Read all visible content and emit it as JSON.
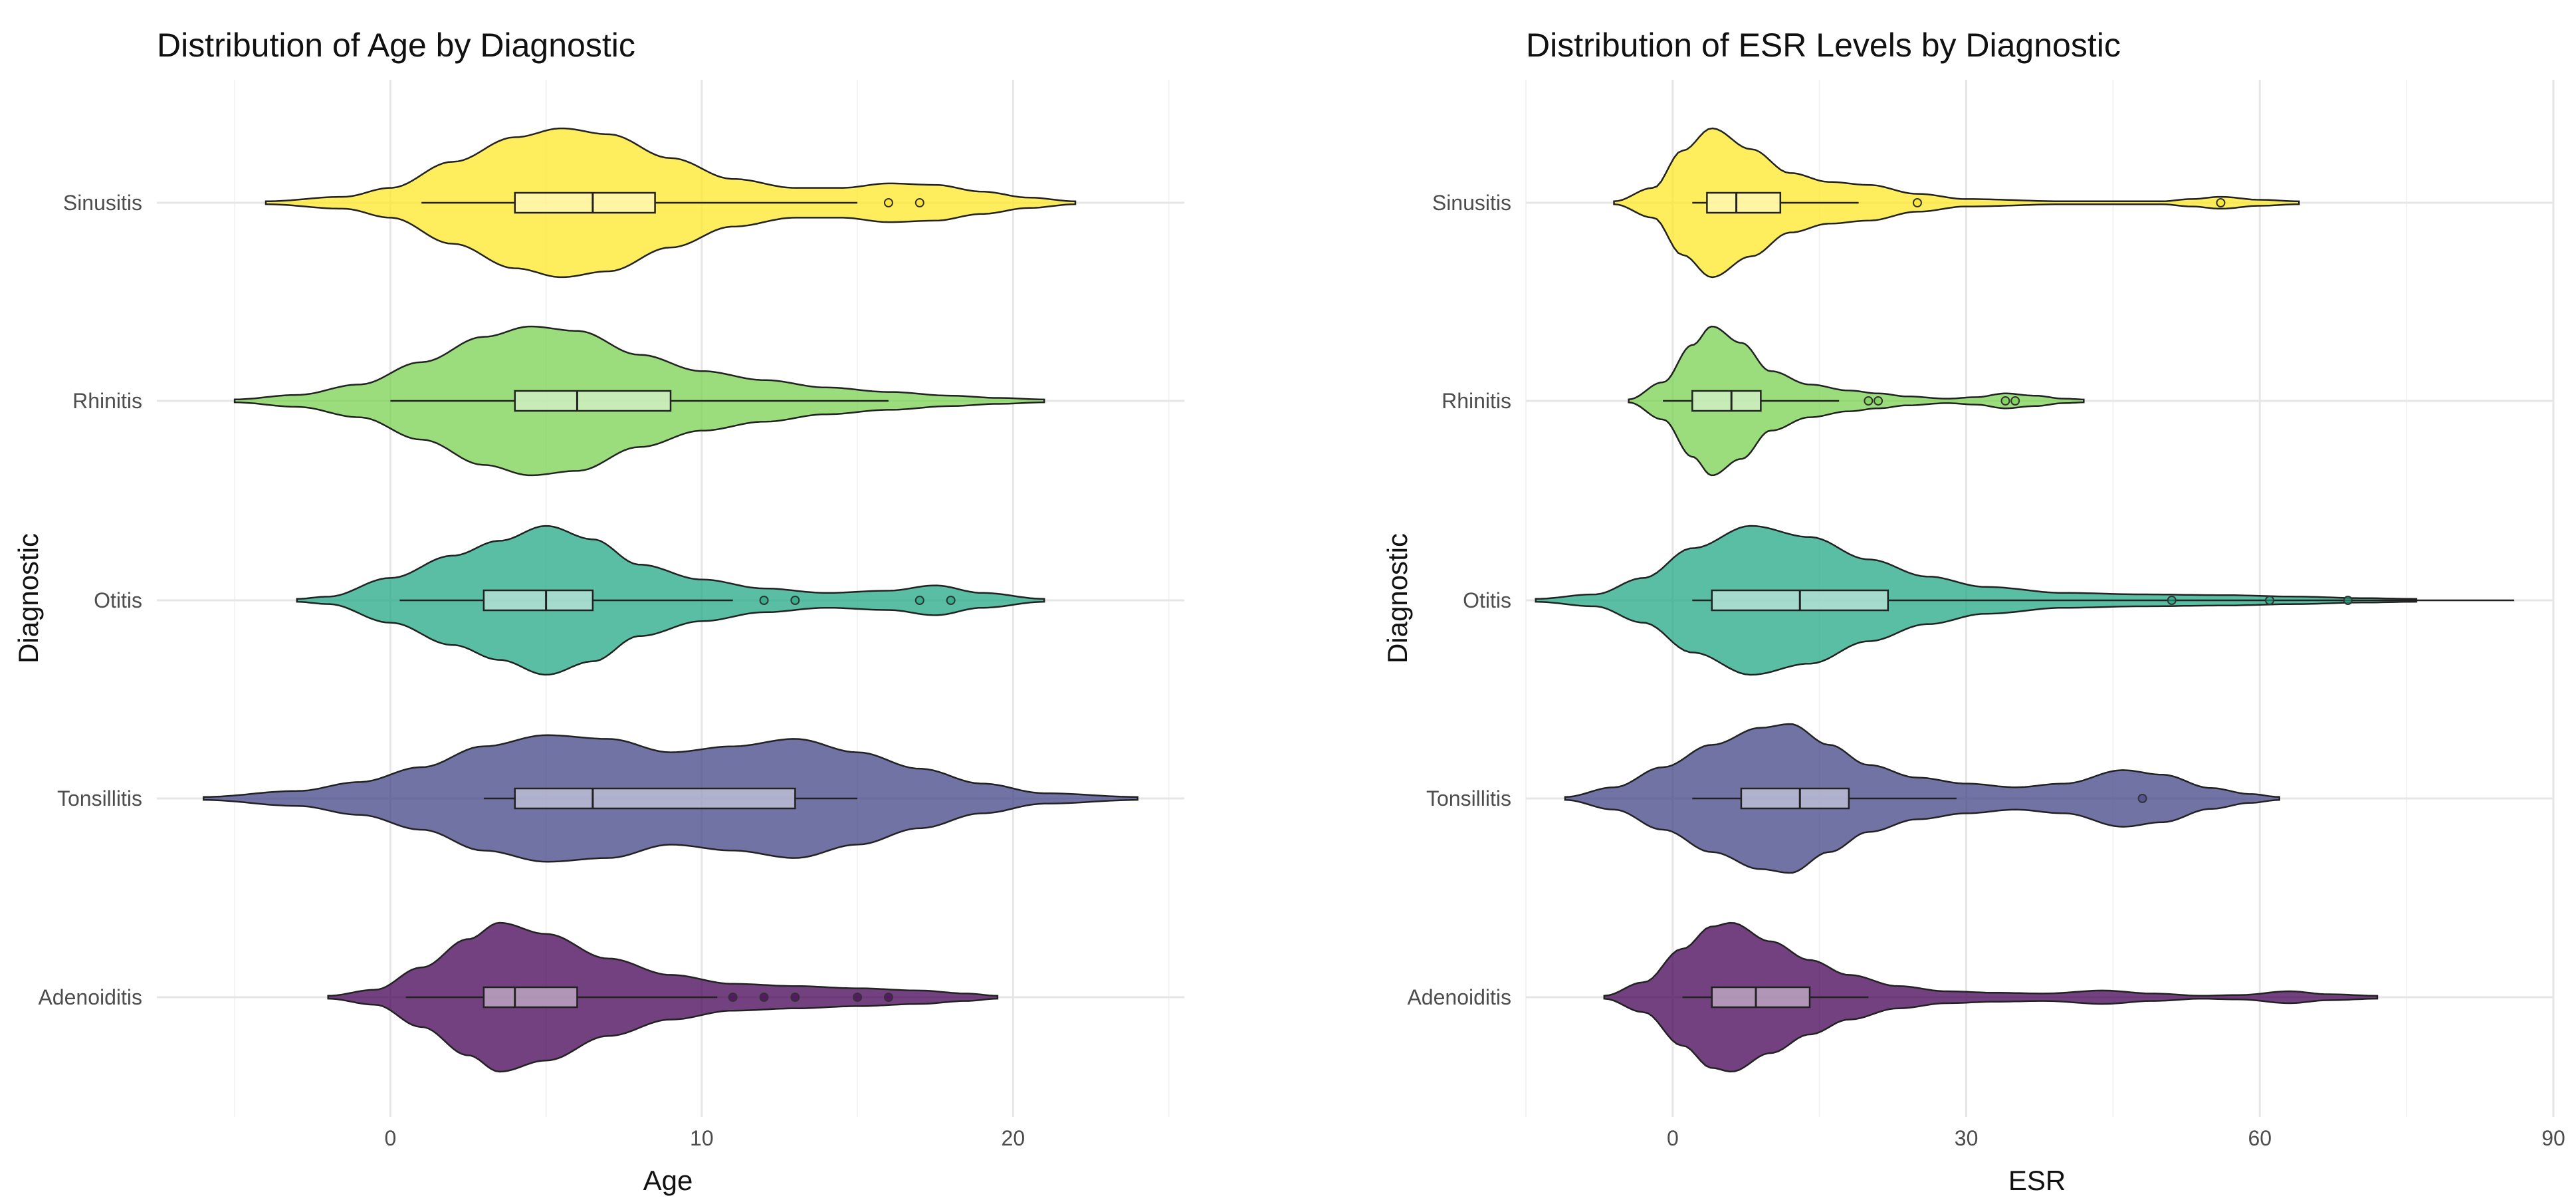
{
  "chart_data": [
    {
      "type": "violin",
      "title": "Distribution of Age by Diagnostic",
      "xlabel": "Age",
      "ylabel": "Diagnostic",
      "xlim": [
        -7.5,
        25.5
      ],
      "x_ticks": [
        0,
        10,
        20
      ],
      "x_minor": [
        -5,
        5,
        15,
        25
      ],
      "grid": true,
      "legend": "none",
      "categories": [
        "Sinusitis",
        "Rhinitis",
        "Otitis",
        "Tonsillitis",
        "Adenoiditis"
      ],
      "series": [
        {
          "name": "Sinusitis",
          "color": "#FDE725",
          "violin_min": -4,
          "violin_max": 22,
          "density": [
            [
              -4,
              0.02
            ],
            [
              -1.5,
              0.08
            ],
            [
              0,
              0.2
            ],
            [
              2,
              0.55
            ],
            [
              4,
              0.88
            ],
            [
              5.5,
              1.0
            ],
            [
              7,
              0.92
            ],
            [
              9,
              0.6
            ],
            [
              11,
              0.32
            ],
            [
              13,
              0.2
            ],
            [
              14.5,
              0.2
            ],
            [
              16,
              0.26
            ],
            [
              17.5,
              0.24
            ],
            [
              19,
              0.15
            ],
            [
              20.5,
              0.07
            ],
            [
              22,
              0.02
            ]
          ],
          "box": {
            "whisker_low": 1,
            "q1": 4,
            "median": 6.5,
            "q3": 8.5,
            "whisker_high": 15
          },
          "outliers": [
            16,
            17
          ]
        },
        {
          "name": "Rhinitis",
          "color": "#7AD151",
          "violin_min": -5,
          "violin_max": 21,
          "density": [
            [
              -5,
              0.02
            ],
            [
              -3,
              0.08
            ],
            [
              -1,
              0.22
            ],
            [
              1,
              0.52
            ],
            [
              3,
              0.86
            ],
            [
              4.5,
              1.0
            ],
            [
              6,
              0.94
            ],
            [
              8,
              0.62
            ],
            [
              10,
              0.4
            ],
            [
              12,
              0.28
            ],
            [
              14,
              0.18
            ],
            [
              16,
              0.12
            ],
            [
              18,
              0.07
            ],
            [
              19.5,
              0.04
            ],
            [
              21,
              0.02
            ]
          ],
          "box": {
            "whisker_low": 0,
            "q1": 4,
            "median": 6,
            "q3": 9,
            "whisker_high": 16
          },
          "outliers": []
        },
        {
          "name": "Otitis",
          "color": "#22A884",
          "violin_min": -3,
          "violin_max": 21,
          "density": [
            [
              -3,
              0.02
            ],
            [
              -2,
              0.05
            ],
            [
              0,
              0.3
            ],
            [
              2,
              0.6
            ],
            [
              3.5,
              0.8
            ],
            [
              5,
              1.0
            ],
            [
              6.5,
              0.82
            ],
            [
              8,
              0.48
            ],
            [
              10,
              0.28
            ],
            [
              12,
              0.16
            ],
            [
              14,
              0.1
            ],
            [
              16,
              0.13
            ],
            [
              17.5,
              0.2
            ],
            [
              19,
              0.1
            ],
            [
              21,
              0.02
            ]
          ],
          "box": {
            "whisker_low": 0.3,
            "q1": 3,
            "median": 5,
            "q3": 6.5,
            "whisker_high": 11
          },
          "outliers": [
            12,
            13,
            17,
            18
          ]
        },
        {
          "name": "Tonsillitis",
          "color": "#414487",
          "violin_min": -6,
          "violin_max": 24,
          "density": [
            [
              -6,
              0.02
            ],
            [
              -3,
              0.1
            ],
            [
              -1,
              0.22
            ],
            [
              1,
              0.42
            ],
            [
              3,
              0.7
            ],
            [
              5,
              0.85
            ],
            [
              7,
              0.8
            ],
            [
              9,
              0.62
            ],
            [
              11,
              0.7
            ],
            [
              13,
              0.8
            ],
            [
              15,
              0.62
            ],
            [
              17,
              0.4
            ],
            [
              19,
              0.2
            ],
            [
              21,
              0.07
            ],
            [
              24,
              0.02
            ]
          ],
          "box": {
            "whisker_low": 3,
            "q1": 4,
            "median": 6.5,
            "q3": 13,
            "whisker_high": 15
          },
          "outliers": []
        },
        {
          "name": "Adenoiditis",
          "color": "#440154",
          "violin_min": -2,
          "violin_max": 19.5,
          "density": [
            [
              -2,
              0.02
            ],
            [
              -0.5,
              0.1
            ],
            [
              1,
              0.4
            ],
            [
              2.5,
              0.78
            ],
            [
              3.5,
              1.0
            ],
            [
              5,
              0.85
            ],
            [
              7,
              0.52
            ],
            [
              9,
              0.3
            ],
            [
              11,
              0.18
            ],
            [
              13,
              0.15
            ],
            [
              15,
              0.12
            ],
            [
              17,
              0.09
            ],
            [
              18.5,
              0.05
            ],
            [
              19.5,
              0.02
            ]
          ],
          "box": {
            "whisker_low": 0.5,
            "q1": 3,
            "median": 4,
            "q3": 6,
            "whisker_high": 10.5
          },
          "outliers": [
            11,
            12,
            13,
            15,
            16
          ]
        }
      ]
    },
    {
      "type": "violin",
      "title": "Distribution of ESR Levels by Diagnostic",
      "xlabel": "ESR",
      "ylabel": "Diagnostic",
      "xlim": [
        -15,
        90
      ],
      "x_ticks": [
        0,
        30,
        60,
        90
      ],
      "x_minor": [
        -15,
        15,
        45,
        75
      ],
      "grid": true,
      "legend": "none",
      "categories": [
        "Sinusitis",
        "Rhinitis",
        "Otitis",
        "Tonsillitis",
        "Adenoiditis"
      ],
      "series": [
        {
          "name": "Sinusitis",
          "color": "#FDE725",
          "violin_min": -6,
          "violin_max": 64,
          "density": [
            [
              -6,
              0.02
            ],
            [
              -2,
              0.2
            ],
            [
              1,
              0.7
            ],
            [
              4,
              1.0
            ],
            [
              8,
              0.72
            ],
            [
              12,
              0.4
            ],
            [
              16,
              0.28
            ],
            [
              20,
              0.24
            ],
            [
              25,
              0.12
            ],
            [
              30,
              0.05
            ],
            [
              40,
              0.02
            ],
            [
              50,
              0.02
            ],
            [
              53,
              0.05
            ],
            [
              56,
              0.08
            ],
            [
              60,
              0.04
            ],
            [
              64,
              0.02
            ]
          ],
          "box": {
            "whisker_low": 2,
            "q1": 3.5,
            "median": 6.5,
            "q3": 11,
            "whisker_high": 19
          },
          "outliers": [
            25,
            56
          ]
        },
        {
          "name": "Rhinitis",
          "color": "#7AD151",
          "violin_min": -4.5,
          "violin_max": 42,
          "density": [
            [
              -4.5,
              0.02
            ],
            [
              -1,
              0.25
            ],
            [
              2,
              0.75
            ],
            [
              4,
              1.0
            ],
            [
              7,
              0.78
            ],
            [
              10,
              0.4
            ],
            [
              14,
              0.22
            ],
            [
              18,
              0.14
            ],
            [
              21,
              0.1
            ],
            [
              24,
              0.06
            ],
            [
              28,
              0.03
            ],
            [
              31,
              0.05
            ],
            [
              34,
              0.1
            ],
            [
              37,
              0.07
            ],
            [
              40,
              0.03
            ],
            [
              42,
              0.02
            ]
          ],
          "box": {
            "whisker_low": -1,
            "q1": 2,
            "median": 6,
            "q3": 9,
            "whisker_high": 17
          },
          "outliers": [
            20,
            21,
            34,
            35
          ]
        },
        {
          "name": "Otitis",
          "color": "#22A884",
          "violin_min": -14,
          "violin_max": 76,
          "density": [
            [
              -14,
              0.02
            ],
            [
              -8,
              0.08
            ],
            [
              -3,
              0.3
            ],
            [
              2,
              0.7
            ],
            [
              8,
              1.0
            ],
            [
              14,
              0.85
            ],
            [
              20,
              0.55
            ],
            [
              26,
              0.32
            ],
            [
              32,
              0.18
            ],
            [
              40,
              0.1
            ],
            [
              48,
              0.08
            ],
            [
              56,
              0.07
            ],
            [
              64,
              0.05
            ],
            [
              70,
              0.03
            ],
            [
              76,
              0.02
            ]
          ],
          "box": {
            "whisker_low": 2,
            "q1": 4,
            "median": 13,
            "q3": 22,
            "whisker_high": 86
          },
          "outliers": [
            51,
            61,
            69
          ]
        },
        {
          "name": "Tonsillitis",
          "color": "#414487",
          "violin_min": -11,
          "violin_max": 62,
          "density": [
            [
              -11,
              0.02
            ],
            [
              -6,
              0.15
            ],
            [
              -1,
              0.42
            ],
            [
              4,
              0.72
            ],
            [
              9,
              0.95
            ],
            [
              12,
              1.0
            ],
            [
              16,
              0.72
            ],
            [
              20,
              0.45
            ],
            [
              25,
              0.28
            ],
            [
              30,
              0.2
            ],
            [
              35,
              0.15
            ],
            [
              40,
              0.2
            ],
            [
              46,
              0.38
            ],
            [
              50,
              0.32
            ],
            [
              55,
              0.14
            ],
            [
              59,
              0.06
            ],
            [
              62,
              0.02
            ]
          ],
          "box": {
            "whisker_low": 2,
            "q1": 7,
            "median": 13,
            "q3": 18,
            "whisker_high": 29
          },
          "outliers": [
            48
          ]
        },
        {
          "name": "Adenoiditis",
          "color": "#440154",
          "violin_min": -7,
          "violin_max": 72,
          "density": [
            [
              -7,
              0.02
            ],
            [
              -3,
              0.2
            ],
            [
              1,
              0.65
            ],
            [
              4,
              0.95
            ],
            [
              6,
              1.0
            ],
            [
              10,
              0.75
            ],
            [
              14,
              0.5
            ],
            [
              18,
              0.3
            ],
            [
              23,
              0.15
            ],
            [
              28,
              0.08
            ],
            [
              33,
              0.06
            ],
            [
              38,
              0.05
            ],
            [
              44,
              0.09
            ],
            [
              49,
              0.05
            ],
            [
              54,
              0.02
            ],
            [
              58,
              0.03
            ],
            [
              63,
              0.08
            ],
            [
              67,
              0.04
            ],
            [
              72,
              0.02
            ]
          ],
          "box": {
            "whisker_low": 1,
            "q1": 4,
            "median": 8.5,
            "q3": 14,
            "whisker_high": 20
          },
          "outliers": []
        }
      ]
    }
  ]
}
